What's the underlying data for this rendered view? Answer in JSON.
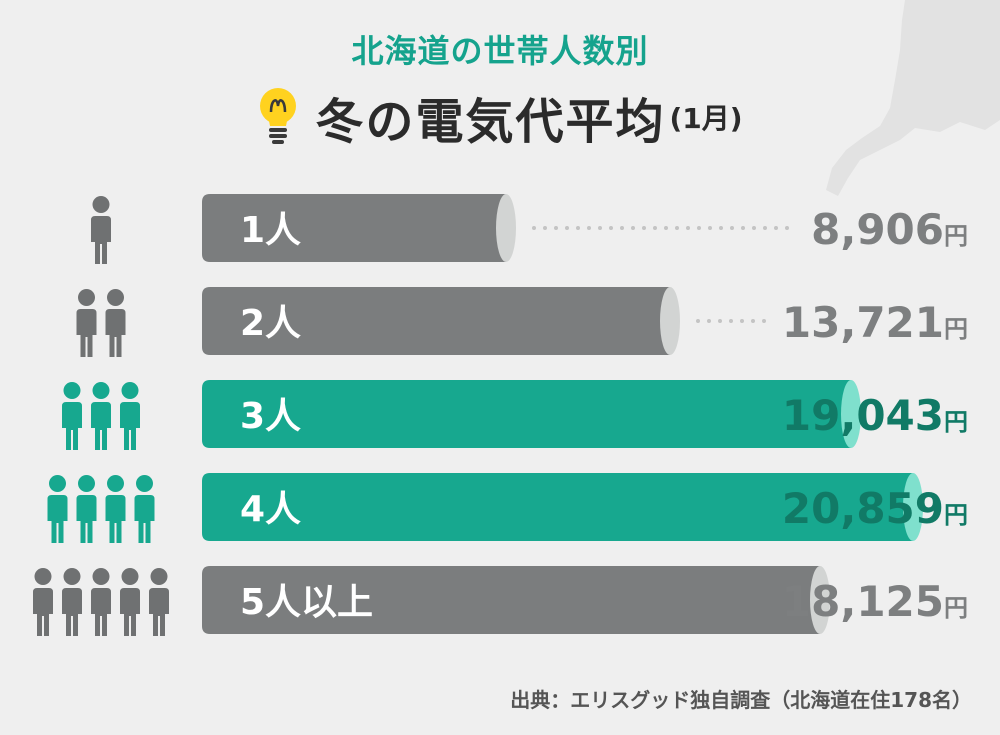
{
  "header": {
    "subtitle": "北海道の世帯人数別",
    "title": "冬の電気代平均",
    "title_suffix": "(1月)"
  },
  "icons": {
    "bulb": "lightbulb-icon",
    "person": "person-icon",
    "map": "hokkaido-map-silhouette"
  },
  "colors": {
    "gray_bar": "#7b7d7e",
    "gray_cap": "#d2d4d3",
    "teal_bar": "#17a88f",
    "teal_cap": "#7fe0cd",
    "gray_value": "#7d7f80",
    "teal_value": "#117a66",
    "dots": "#c4c4c4",
    "person_gray": "#6f7172",
    "person_teal": "#17a88f"
  },
  "chart_data": {
    "type": "bar",
    "orientation": "horizontal",
    "unit": "円",
    "categories": [
      "1人",
      "2人",
      "3人",
      "4人",
      "5人以上"
    ],
    "persons": [
      1,
      2,
      3,
      4,
      5
    ],
    "values": [
      8906,
      13721,
      19043,
      20859,
      18125
    ],
    "value_labels": [
      "8,906",
      "13,721",
      "19,043",
      "20,859",
      "18,125"
    ],
    "highlighted": [
      false,
      false,
      true,
      true,
      false
    ],
    "xlim": [
      0,
      22000
    ],
    "grid": false,
    "legend": "none"
  },
  "footer": {
    "source": "出典：エリスグッド独自調査（北海道在住178名）"
  }
}
